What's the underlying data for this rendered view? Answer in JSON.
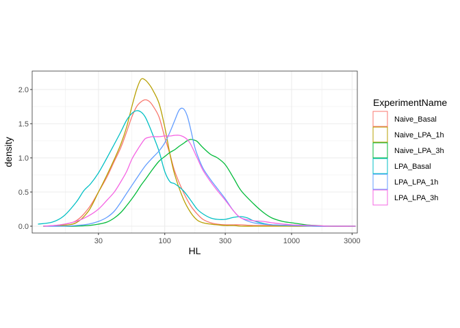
{
  "chart_data": {
    "type": "line",
    "title": "",
    "xlabel": "HL",
    "ylabel": "density",
    "x_scale": "log10",
    "xlim": [
      9,
      3300
    ],
    "ylim": [
      -0.1,
      2.27
    ],
    "x_ticks": [
      30,
      100,
      300,
      1000,
      3000
    ],
    "x_tick_labels": [
      "30",
      "100",
      "300",
      "1000",
      "3000"
    ],
    "y_ticks": [
      0.0,
      0.5,
      1.0,
      1.5,
      2.0
    ],
    "y_tick_labels": [
      "0.0",
      "0.5",
      "1.0",
      "1.5",
      "2.0"
    ],
    "grid": true,
    "legend": {
      "title": "ExperimentName",
      "position": "right"
    },
    "series": [
      {
        "name": "Naive_Basal",
        "color": "#F8766D",
        "x": [
          11,
          15,
          20,
          25,
          30,
          35,
          40,
          45,
          50,
          55,
          60,
          65,
          70,
          75,
          80,
          90,
          100,
          110,
          120,
          140,
          160,
          180,
          200,
          230,
          260,
          300,
          350,
          400,
          500,
          700,
          1000,
          1500,
          2000,
          3200
        ],
        "y": [
          0.0,
          0.02,
          0.08,
          0.26,
          0.5,
          0.72,
          0.95,
          1.15,
          1.38,
          1.6,
          1.75,
          1.82,
          1.85,
          1.83,
          1.77,
          1.6,
          1.3,
          1.05,
          0.8,
          0.5,
          0.3,
          0.18,
          0.1,
          0.05,
          0.03,
          0.02,
          0.02,
          0.02,
          0.01,
          0.01,
          0.0,
          0.0,
          0.0,
          0.0
        ]
      },
      {
        "name": "Naive_LPA_1h",
        "color": "#B79F00",
        "x": [
          11,
          15,
          20,
          25,
          30,
          35,
          40,
          45,
          50,
          55,
          60,
          65,
          70,
          75,
          80,
          90,
          100,
          110,
          120,
          140,
          160,
          180,
          200,
          230,
          260,
          300,
          350,
          400,
          500,
          700,
          1000,
          1500,
          2000,
          3200
        ],
        "y": [
          0.0,
          0.01,
          0.05,
          0.22,
          0.5,
          0.75,
          0.98,
          1.2,
          1.45,
          1.75,
          2.0,
          2.15,
          2.14,
          2.08,
          2.0,
          1.8,
          1.45,
          1.05,
          0.75,
          0.4,
          0.2,
          0.09,
          0.05,
          0.03,
          0.02,
          0.01,
          0.01,
          0.0,
          0.0,
          0.0,
          0.0,
          0.0,
          0.0,
          0.0
        ]
      },
      {
        "name": "Naive_LPA_3h",
        "color": "#00BA38",
        "x": [
          11,
          15,
          20,
          25,
          30,
          35,
          40,
          45,
          50,
          55,
          60,
          65,
          70,
          80,
          90,
          100,
          110,
          120,
          130,
          140,
          150,
          160,
          170,
          180,
          200,
          230,
          260,
          300,
          350,
          400,
          500,
          600,
          700,
          850,
          1000,
          1300,
          1600,
          2000,
          3200
        ],
        "y": [
          0.0,
          0.0,
          0.0,
          0.01,
          0.03,
          0.06,
          0.12,
          0.2,
          0.3,
          0.4,
          0.5,
          0.6,
          0.68,
          0.83,
          0.95,
          1.02,
          1.08,
          1.12,
          1.17,
          1.21,
          1.25,
          1.27,
          1.26,
          1.24,
          1.15,
          1.05,
          1.0,
          0.9,
          0.7,
          0.52,
          0.33,
          0.2,
          0.12,
          0.07,
          0.05,
          0.02,
          0.01,
          0.0,
          0.0
        ]
      },
      {
        "name": "LPA_Basal",
        "color": "#00BFC4",
        "x": [
          10,
          13,
          16,
          20,
          23,
          26,
          30,
          35,
          40,
          45,
          50,
          55,
          60,
          65,
          70,
          75,
          80,
          90,
          100,
          110,
          120,
          140,
          160,
          180,
          200,
          230,
          260,
          300,
          350,
          400,
          450,
          500,
          600,
          700,
          1000,
          1500,
          2000,
          3200
        ],
        "y": [
          0.03,
          0.06,
          0.15,
          0.35,
          0.52,
          0.62,
          0.78,
          1.0,
          1.2,
          1.38,
          1.55,
          1.65,
          1.69,
          1.67,
          1.6,
          1.48,
          1.35,
          1.1,
          0.8,
          0.65,
          0.62,
          0.52,
          0.38,
          0.25,
          0.18,
          0.12,
          0.1,
          0.1,
          0.13,
          0.14,
          0.12,
          0.08,
          0.04,
          0.02,
          0.01,
          0.0,
          0.0,
          0.0
        ]
      },
      {
        "name": "LPA_LPA_1h",
        "color": "#619CFF",
        "x": [
          11,
          15,
          20,
          25,
          30,
          35,
          40,
          45,
          50,
          60,
          70,
          80,
          90,
          100,
          110,
          120,
          130,
          140,
          150,
          160,
          170,
          180,
          200,
          230,
          260,
          300,
          350,
          400,
          500,
          700,
          1000,
          1500,
          2000,
          3200
        ],
        "y": [
          0.0,
          0.0,
          0.01,
          0.03,
          0.07,
          0.13,
          0.22,
          0.35,
          0.48,
          0.7,
          0.88,
          1.0,
          1.1,
          1.22,
          1.38,
          1.55,
          1.7,
          1.72,
          1.62,
          1.42,
          1.2,
          1.05,
          0.85,
          0.68,
          0.55,
          0.4,
          0.22,
          0.12,
          0.05,
          0.02,
          0.01,
          0.0,
          0.0,
          0.0
        ]
      },
      {
        "name": "LPA_LPA_3h",
        "color": "#F564E3",
        "x": [
          11,
          15,
          20,
          25,
          30,
          35,
          40,
          45,
          50,
          55,
          60,
          65,
          70,
          75,
          80,
          90,
          100,
          110,
          120,
          130,
          140,
          150,
          160,
          180,
          200,
          230,
          260,
          300,
          350,
          400,
          500,
          600,
          700,
          1000,
          1500,
          2000,
          3200
        ],
        "y": [
          0.0,
          0.02,
          0.07,
          0.15,
          0.25,
          0.38,
          0.5,
          0.65,
          0.8,
          0.98,
          1.1,
          1.2,
          1.28,
          1.3,
          1.31,
          1.31,
          1.32,
          1.32,
          1.33,
          1.33,
          1.31,
          1.27,
          1.2,
          1.0,
          0.82,
          0.65,
          0.52,
          0.38,
          0.22,
          0.12,
          0.08,
          0.07,
          0.05,
          0.02,
          0.01,
          0.0,
          0.0
        ]
      }
    ]
  }
}
